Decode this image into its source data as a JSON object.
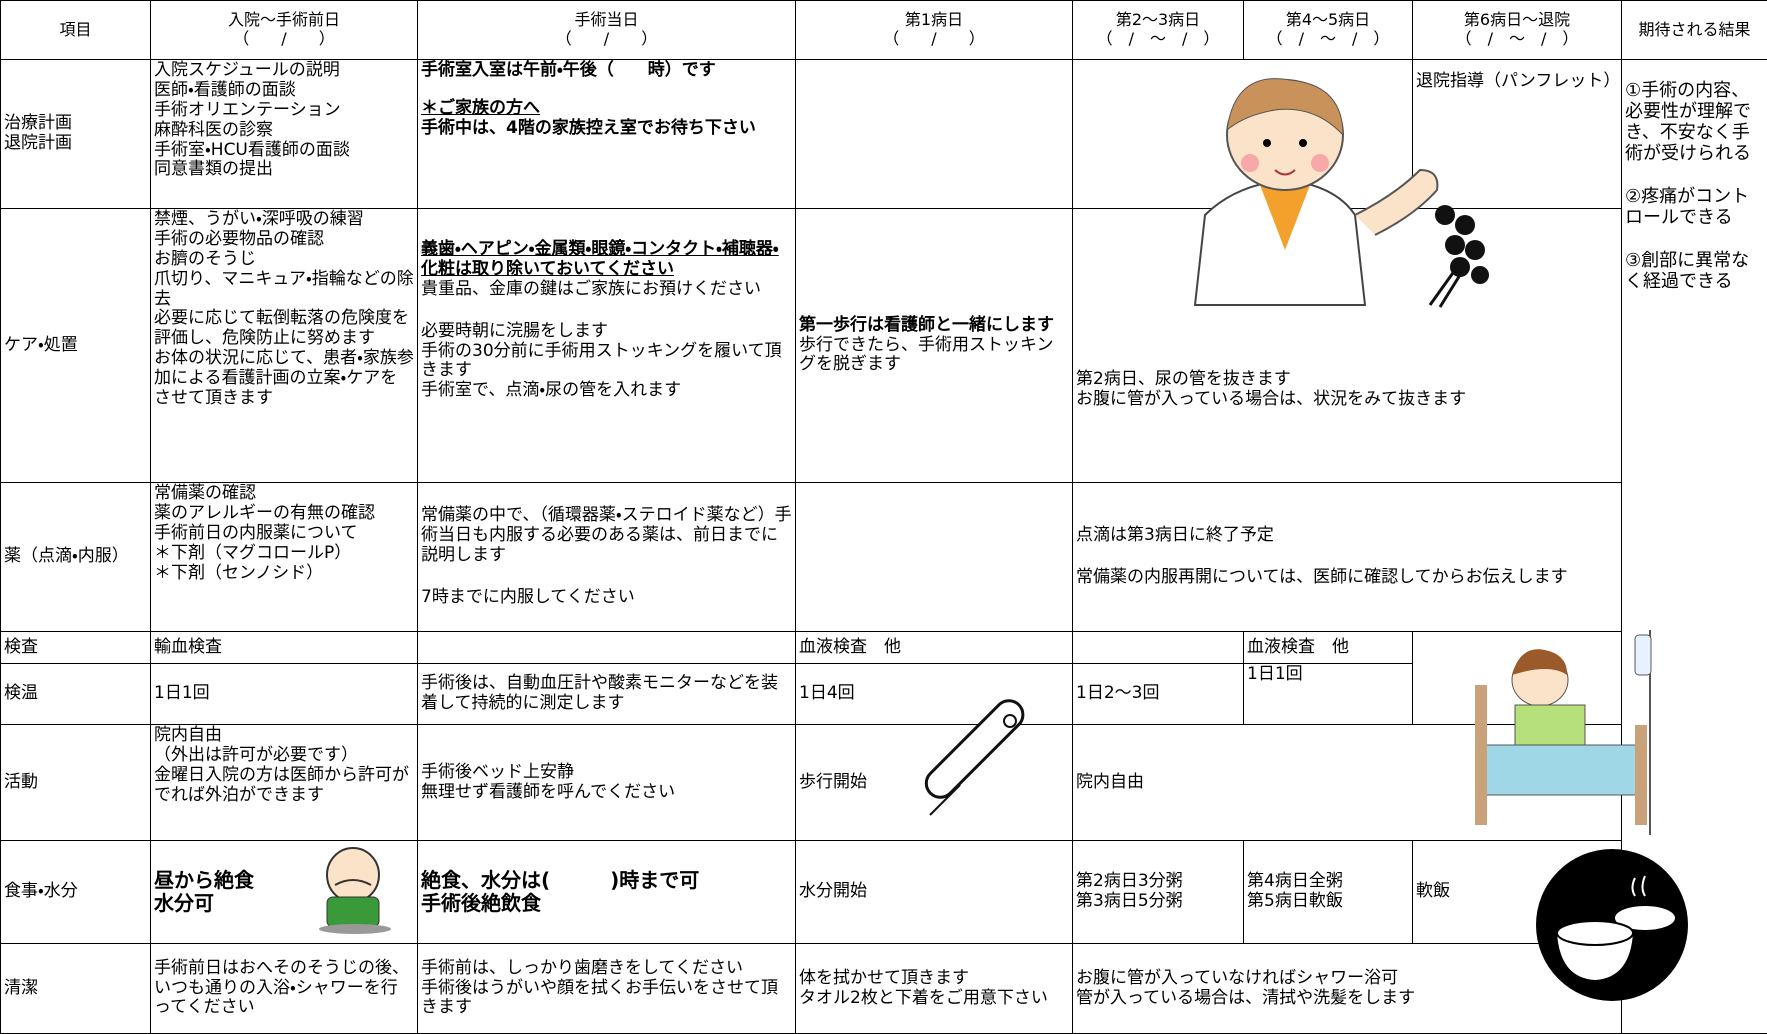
{
  "header": [
    {
      "title": "項目"
    },
    {
      "title": "入院～手術前日",
      "date": "（　　/　　）"
    },
    {
      "title": "手術当日",
      "date": "（　　/　　）"
    },
    {
      "title": "第1病日",
      "date": "（　　/　　）"
    },
    {
      "title": "第2～3病日",
      "date": "（　/　～　/　）"
    },
    {
      "title": "第4～5病日",
      "date": "（　/　～　/　）"
    },
    {
      "title": "第6病日～退院",
      "date": "（　/　～　/　）"
    },
    {
      "title": "期待される結果"
    }
  ],
  "results": [
    "①手術の内容、必要性が理解でき、不安なく手術が受けられる",
    "②疼痛がコントロールできる",
    "③創部に異常なく経過できる"
  ],
  "rows": [
    {
      "label": [
        "治療計画",
        "退院計画"
      ],
      "cells": [
        [
          "入院スケジュールの説明",
          "医師・看護師の面談",
          "手術オリエンテーション",
          "麻酔科医の診察",
          "手術室・HCU看護師の面談",
          "同意書類の提出"
        ],
        [
          "手術室入室は午前・午後（　　時）です",
          "＊ご家族の方へ",
          "手術中は、4階の家族控え室でお待ち下さい"
        ],
        [
          "退院指導（パンフレット）"
        ]
      ]
    },
    {
      "label": [
        "ケア・処置"
      ],
      "cells": [
        [
          "禁煙、うがい・深呼吸の練習",
          "手術の必要物品の確認",
          "お臍のそうじ",
          "爪切り、マニキュア・指輪などの除去",
          "必要に応じて転倒転落の危険度を評価し、危険防止に努めます",
          "お体の状況に応じて、患者・家族参加による看護計画の立案・ケアをさせて頂きます"
        ],
        [
          "義歯・ヘアピン・金属類・眼鏡・コンタクト・補聴器・化粧は取り除いておいてください",
          "貴重品、金庫の鍵はご家族にお預けください",
          "必要時朝に浣腸をします",
          "手術の30分前に手術用ストッキングを履いて頂きます",
          "手術室で、点滴・尿の管を入れます"
        ],
        [
          "第一歩行は看護師と一緒にします",
          "歩行できたら、手術用ストッキングを脱ぎます"
        ],
        [
          "第2病日、尿の管を抜きます",
          "お腹に管が入っている場合は、状況をみて抜きます"
        ]
      ]
    },
    {
      "label": [
        "薬（点滴・内服）"
      ],
      "cells": [
        [
          "常備薬の確認",
          "薬のアレルギーの有無の確認",
          "手術前日の内服薬について",
          "＊下剤（マグコロールP）",
          "＊下剤（センノシド）"
        ],
        [
          "常備薬の中で、（循環器薬・ステロイド薬など）手術当日も内服する必要のある薬は、前日までに説明します",
          "7時までに内服してください"
        ],
        [
          "点滴は第3病日に終了予定",
          "常備薬の内服再開については、医師に確認してからお伝えします"
        ]
      ]
    },
    {
      "label": [
        "検査"
      ],
      "cells": [
        [
          "輸血検査"
        ],
        [
          "血液検査　他"
        ],
        [
          "血液検査　他"
        ]
      ]
    },
    {
      "label": [
        "検温"
      ],
      "cells": [
        [
          "1日1回"
        ],
        [
          "手術後は、自動血圧計や酸素モニターなどを装着して持続的に測定します"
        ],
        [
          "1日4回"
        ],
        [
          "1日2～3回"
        ],
        [
          "1日1回"
        ]
      ]
    },
    {
      "label": [
        "活動"
      ],
      "cells": [
        [
          "院内自由",
          "（外出は許可が必要です）",
          "金曜日入院の方は医師から許可がでれば外泊ができます"
        ],
        [
          "手術後ベッド上安静",
          "無理せず看護師を呼んでください"
        ],
        [
          "歩行開始"
        ],
        [
          "院内自由"
        ]
      ]
    },
    {
      "label": [
        "食事・水分"
      ],
      "cells": [
        [
          "昼から絶食",
          "水分可"
        ],
        [
          "絶食、水分は(　　　)時まで可",
          "手術後絶飲食"
        ],
        [
          "水分開始"
        ],
        [
          "第2病日3分粥",
          "第3病日5分粥"
        ],
        [
          "第4病日全粥",
          "第5病日軟飯"
        ],
        [
          "軟飯"
        ]
      ]
    },
    {
      "label": [
        "清潔"
      ],
      "cells": [
        [
          "手術前日はおへそのそうじの後、いつも通りの入浴・シャワーを行ってください"
        ],
        [
          "手術前は、しっかり歯磨きをしてください",
          "手術後はうがいや顔を拭くお手伝いをさせて頂きます"
        ],
        [
          "体を拭かせて頂きます",
          "タオル2枚と下着をご用意下さい"
        ],
        [
          "お腹に管が入っていなければシャワー浴可",
          "管が入っている場合は、清拭や洗髪をします"
        ]
      ]
    }
  ]
}
